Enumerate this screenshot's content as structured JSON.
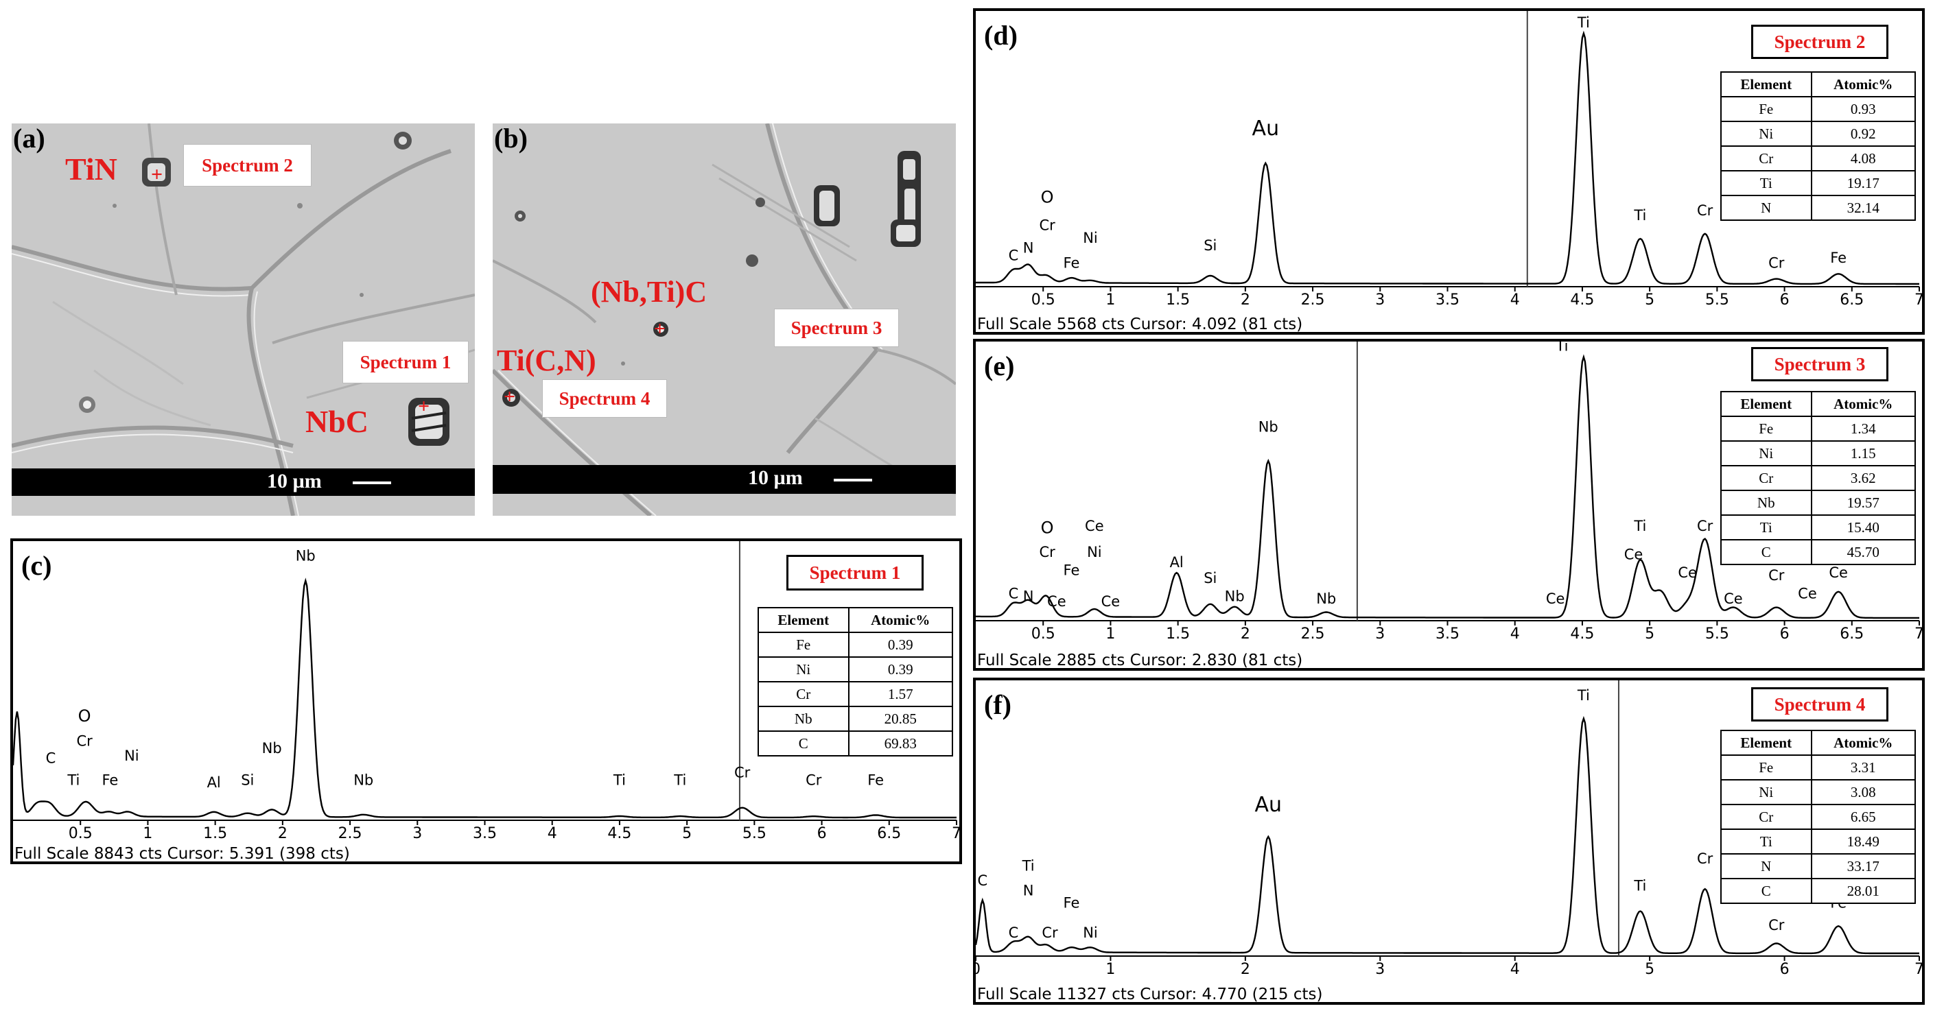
{
  "micrographs": [
    {
      "id": "a",
      "panel_label": "(a)",
      "phase_labels": [
        "TiN",
        "NbC"
      ],
      "spectrum_labels": [
        "Spectrum 2",
        "Spectrum 1"
      ],
      "scale_text": "10 µm"
    },
    {
      "id": "b",
      "panel_label": "(b)",
      "phase_labels": [
        "(Nb,Ti)C",
        "Ti(C,N)"
      ],
      "spectrum_labels": [
        "Spectrum 3",
        "Spectrum 4"
      ],
      "scale_text": "10 µm"
    }
  ],
  "table_header": {
    "element": "Element",
    "atomic": "Atomic%"
  },
  "spectra": [
    {
      "id": "c",
      "panel_label": "(c)",
      "title": "Spectrum 1",
      "status": "Full Scale 8843 cts Cursor: 5.391  (398 cts)",
      "cursor": 5.391,
      "xlim": [
        0,
        7
      ],
      "tick_labels": [
        "0.5",
        "1",
        "1.5",
        "2",
        "2.5",
        "3",
        "3.5",
        "4",
        "4.5",
        "5",
        "5.5",
        "6",
        "6.5",
        "7"
      ],
      "composition": [
        [
          "Fe",
          "0.39"
        ],
        [
          "Ni",
          "0.39"
        ],
        [
          "Cr",
          "1.57"
        ],
        [
          "Nb",
          "20.85"
        ],
        [
          "C",
          "69.83"
        ]
      ],
      "peaks": [
        [
          0.03,
          0.43
        ],
        [
          0.18,
          0.05
        ],
        [
          0.27,
          0.05
        ],
        [
          0.52,
          0.04
        ],
        [
          0.57,
          0.03
        ],
        [
          0.71,
          0.02
        ],
        [
          0.85,
          0.02
        ],
        [
          1.49,
          0.02
        ],
        [
          1.74,
          0.015
        ],
        [
          1.92,
          0.03
        ],
        [
          2.17,
          0.97
        ],
        [
          2.6,
          0.01
        ],
        [
          4.5,
          0.005
        ],
        [
          4.95,
          0.005
        ],
        [
          5.41,
          0.04
        ],
        [
          5.94,
          0.005
        ],
        [
          6.4,
          0.01
        ]
      ],
      "peak_labels": [
        [
          "C",
          0.28,
          0.23
        ],
        [
          "O",
          0.53,
          0.4
        ],
        [
          "Cr",
          0.53,
          0.3
        ],
        [
          "Ti",
          0.45,
          0.14
        ],
        [
          "Fe",
          0.72,
          0.14
        ],
        [
          "Ni",
          0.88,
          0.24
        ],
        [
          "Al",
          1.49,
          0.13
        ],
        [
          "Si",
          1.74,
          0.14
        ],
        [
          "Nb",
          1.92,
          0.27
        ],
        [
          "Nb",
          2.17,
          1.06
        ],
        [
          "Nb",
          2.6,
          0.14
        ],
        [
          "Ti",
          4.5,
          0.14
        ],
        [
          "Ti",
          4.95,
          0.14
        ],
        [
          "Cr",
          5.41,
          0.17
        ],
        [
          "Cr",
          5.94,
          0.14
        ],
        [
          "Fe",
          6.4,
          0.14
        ]
      ]
    },
    {
      "id": "d",
      "panel_label": "(d)",
      "title": "Spectrum 2",
      "status": "Full Scale 5568 cts Cursor: 4.092  (81 cts)",
      "cursor": 4.092,
      "xlim": [
        0,
        7
      ],
      "tick_labels": [
        "0.5",
        "1",
        "1.5",
        "2",
        "2.5",
        "3",
        "3.5",
        "4",
        "4.5",
        "5",
        "5.5",
        "6",
        "6.5",
        "7"
      ],
      "composition": [
        [
          "Fe",
          "0.93"
        ],
        [
          "Ni",
          "0.92"
        ],
        [
          "Cr",
          "4.08"
        ],
        [
          "Ti",
          "19.17"
        ],
        [
          "N",
          "32.14"
        ]
      ],
      "peaks": [
        [
          0.28,
          0.05
        ],
        [
          0.39,
          0.07
        ],
        [
          0.52,
          0.03
        ],
        [
          0.71,
          0.02
        ],
        [
          0.85,
          0.01
        ],
        [
          1.74,
          0.03
        ],
        [
          2.15,
          0.48
        ],
        [
          4.51,
          1.0
        ],
        [
          4.93,
          0.18
        ],
        [
          5.41,
          0.2
        ],
        [
          5.94,
          0.02
        ],
        [
          6.4,
          0.04
        ]
      ],
      "peak_labels": [
        [
          "C",
          0.28,
          0.1
        ],
        [
          "N",
          0.39,
          0.13
        ],
        [
          "O",
          0.53,
          0.33
        ],
        [
          "Cr",
          0.53,
          0.22
        ],
        [
          "Fe",
          0.71,
          0.07
        ],
        [
          "Ni",
          0.85,
          0.17
        ],
        [
          "Si",
          1.74,
          0.14
        ],
        [
          "Au",
          2.15,
          0.6
        ],
        [
          "Ti",
          4.51,
          1.03
        ],
        [
          "Ti",
          4.93,
          0.26
        ],
        [
          "Cr",
          5.41,
          0.28
        ],
        [
          "Cr",
          5.94,
          0.07
        ],
        [
          "Fe",
          6.4,
          0.09
        ]
      ]
    },
    {
      "id": "e",
      "panel_label": "(e)",
      "title": "Spectrum 3",
      "status": "Full Scale 2885 cts Cursor: 2.830  (81 cts)",
      "cursor": 2.83,
      "xlim": [
        0,
        7
      ],
      "tick_labels": [
        "0.5",
        "1",
        "1.5",
        "2",
        "2.5",
        "3",
        "3.5",
        "4",
        "4.5",
        "5",
        "5.5",
        "6",
        "6.5",
        "7"
      ],
      "composition": [
        [
          "Fe",
          "1.34"
        ],
        [
          "Ni",
          "1.15"
        ],
        [
          "Cr",
          "3.62"
        ],
        [
          "Nb",
          "19.57"
        ],
        [
          "Ti",
          "15.40"
        ],
        [
          "C",
          "45.70"
        ]
      ],
      "peaks": [
        [
          0.28,
          0.05
        ],
        [
          0.39,
          0.06
        ],
        [
          0.52,
          0.08
        ],
        [
          0.88,
          0.03
        ],
        [
          1.49,
          0.17
        ],
        [
          1.74,
          0.05
        ],
        [
          1.92,
          0.04
        ],
        [
          2.17,
          0.6
        ],
        [
          2.6,
          0.02
        ],
        [
          4.51,
          1.0
        ],
        [
          4.93,
          0.22
        ],
        [
          5.08,
          0.1
        ],
        [
          5.28,
          0.05
        ],
        [
          5.41,
          0.3
        ],
        [
          5.62,
          0.04
        ],
        [
          5.94,
          0.04
        ],
        [
          6.4,
          0.1
        ]
      ],
      "peak_labels": [
        [
          "C",
          0.28,
          0.08
        ],
        [
          "N",
          0.39,
          0.07
        ],
        [
          "O",
          0.53,
          0.33
        ],
        [
          "Cr",
          0.53,
          0.24
        ],
        [
          "Ce",
          0.88,
          0.34
        ],
        [
          "Ni",
          0.88,
          0.24
        ],
        [
          "Fe",
          0.71,
          0.17
        ],
        [
          "Ce",
          0.6,
          0.05
        ],
        [
          "Ce",
          1.0,
          0.05
        ],
        [
          "Al",
          1.49,
          0.2
        ],
        [
          "Si",
          1.74,
          0.14
        ],
        [
          "Nb",
          1.92,
          0.07
        ],
        [
          "Nb",
          2.17,
          0.72
        ],
        [
          "Nb",
          2.6,
          0.06
        ],
        [
          "Ce",
          4.3,
          0.06
        ],
        [
          "Ti",
          4.35,
          1.03
        ],
        [
          "Ti",
          4.93,
          0.34
        ],
        [
          "Ce",
          4.88,
          0.23
        ],
        [
          "Ce",
          5.28,
          0.16
        ],
        [
          "Cr",
          5.41,
          0.34
        ],
        [
          "Ce",
          5.62,
          0.06
        ],
        [
          "Cr",
          5.94,
          0.15
        ],
        [
          "Ce",
          6.17,
          0.08
        ],
        [
          "Ce",
          6.4,
          0.16
        ]
      ]
    },
    {
      "id": "f",
      "panel_label": "(f)",
      "title": "Spectrum 4",
      "status": "Full Scale 11327 cts Cursor: 4.770  (215 cts)",
      "cursor": 4.77,
      "xlim": [
        0,
        7
      ],
      "tick_labels": [
        "0",
        "1",
        "2",
        "3",
        "4",
        "5",
        "6",
        "7"
      ],
      "composition": [
        [
          "Fe",
          "3.31"
        ],
        [
          "Ni",
          "3.08"
        ],
        [
          "Cr",
          "6.65"
        ],
        [
          "Ti",
          "18.49"
        ],
        [
          "N",
          "33.17"
        ],
        [
          "C",
          "28.01"
        ]
      ],
      "peaks": [
        [
          0.05,
          0.21
        ],
        [
          0.28,
          0.04
        ],
        [
          0.39,
          0.06
        ],
        [
          0.52,
          0.03
        ],
        [
          0.71,
          0.02
        ],
        [
          0.85,
          0.02
        ],
        [
          2.17,
          0.47
        ],
        [
          4.51,
          0.95
        ],
        [
          4.93,
          0.17
        ],
        [
          5.41,
          0.26
        ],
        [
          5.94,
          0.04
        ],
        [
          6.4,
          0.11
        ]
      ],
      "peak_labels": [
        [
          "C",
          0.05,
          0.28
        ],
        [
          "Ti",
          0.39,
          0.34
        ],
        [
          "N",
          0.39,
          0.24
        ],
        [
          "C",
          0.28,
          0.07
        ],
        [
          "Cr",
          0.55,
          0.07
        ],
        [
          "Fe",
          0.71,
          0.19
        ],
        [
          "Ni",
          0.85,
          0.07
        ],
        [
          "Au",
          2.17,
          0.58
        ],
        [
          "Ti",
          4.51,
          1.03
        ],
        [
          "Ti",
          4.93,
          0.26
        ],
        [
          "Cr",
          5.41,
          0.37
        ],
        [
          "Cr",
          5.94,
          0.1
        ],
        [
          "Fe",
          6.4,
          0.19
        ]
      ]
    }
  ]
}
